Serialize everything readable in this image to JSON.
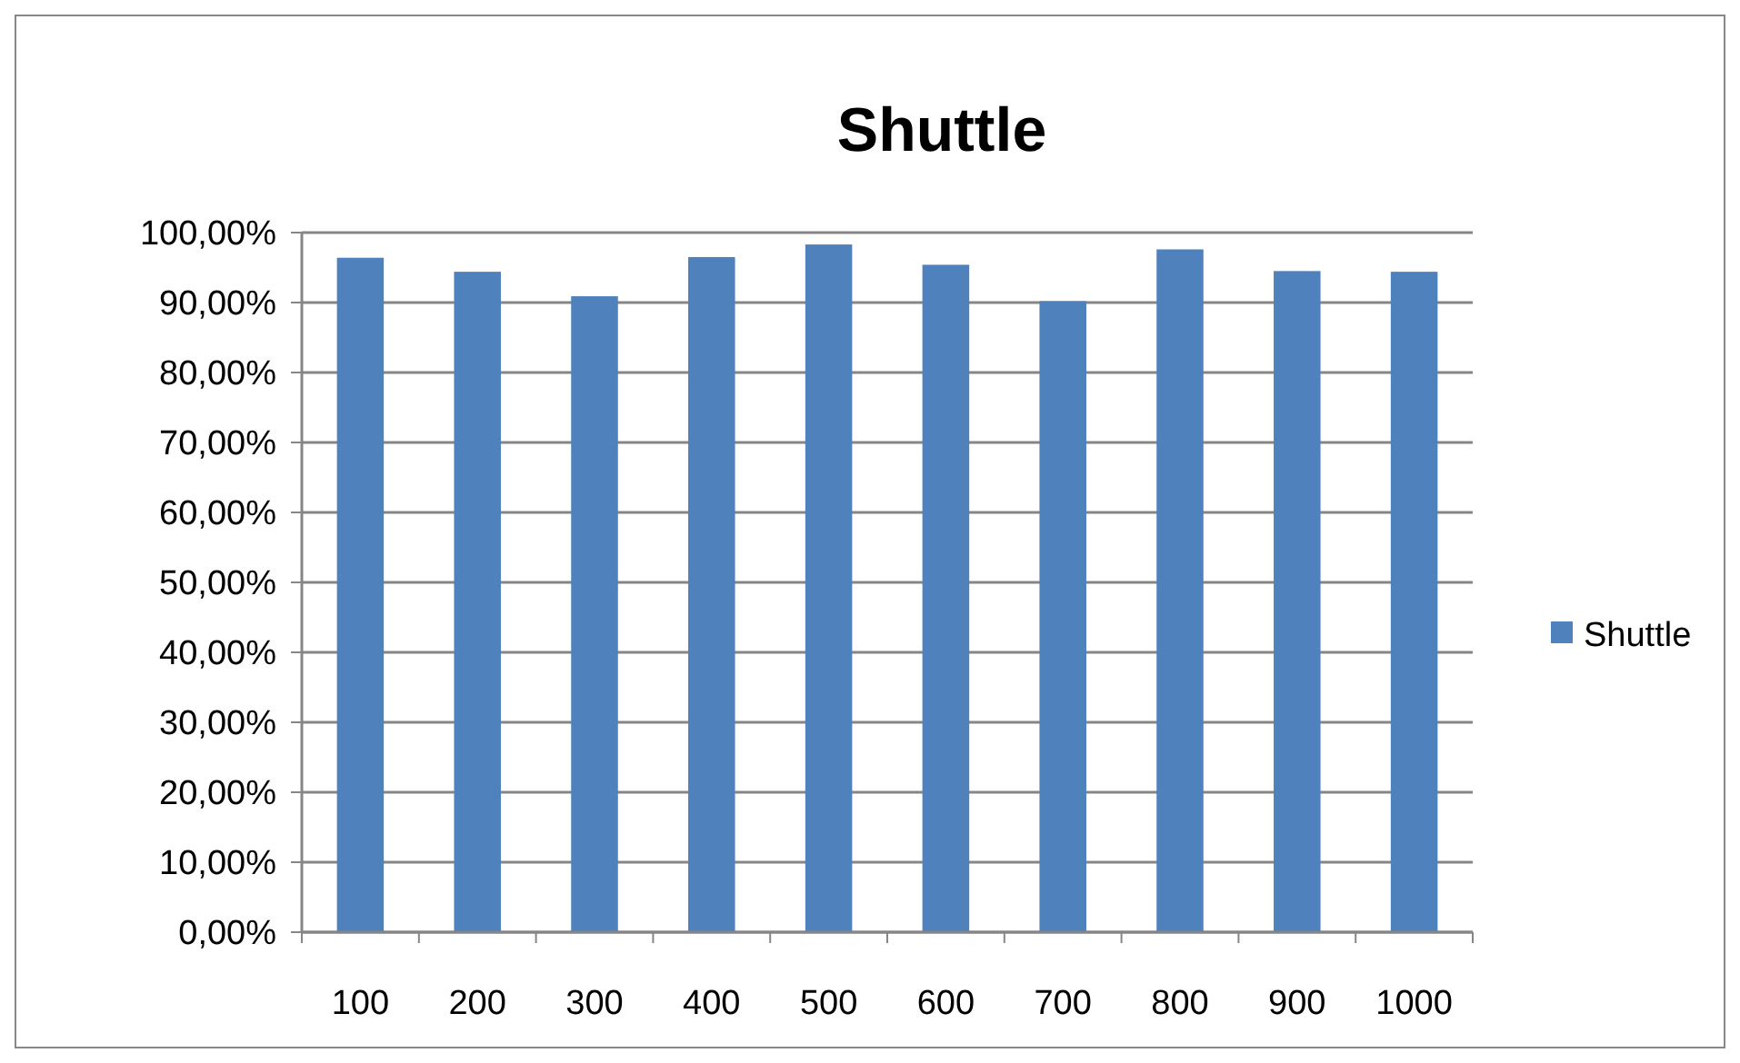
{
  "chart_data": {
    "type": "bar",
    "title": "Shuttle",
    "categories": [
      "100",
      "200",
      "300",
      "400",
      "500",
      "600",
      "700",
      "800",
      "900",
      "1000"
    ],
    "series": [
      {
        "name": "Shuttle",
        "color": "#4f81bd",
        "values": [
          96.4,
          94.4,
          90.9,
          96.5,
          98.3,
          95.4,
          90.2,
          97.6,
          94.5,
          94.4
        ]
      }
    ],
    "ylim": [
      0,
      100
    ],
    "yticks": [
      {
        "value": 0,
        "label": "0,00%"
      },
      {
        "value": 10,
        "label": "10,00%"
      },
      {
        "value": 20,
        "label": "20,00%"
      },
      {
        "value": 30,
        "label": "30,00%"
      },
      {
        "value": 40,
        "label": "40,00%"
      },
      {
        "value": 50,
        "label": "50,00%"
      },
      {
        "value": 60,
        "label": "60,00%"
      },
      {
        "value": 70,
        "label": "70,00%"
      },
      {
        "value": 80,
        "label": "80,00%"
      },
      {
        "value": 90,
        "label": "90,00%"
      },
      {
        "value": 100,
        "label": "100,00%"
      }
    ],
    "grid": "y",
    "legend": "right"
  }
}
